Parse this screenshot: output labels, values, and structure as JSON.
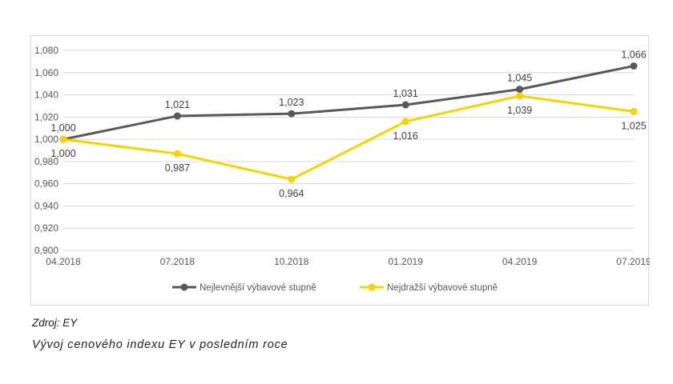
{
  "source_note": "Zdroj: EY",
  "caption": "Vývoj cenového indexu EY v posledním roce",
  "chart_data": {
    "type": "line",
    "title": "",
    "xlabel": "",
    "ylabel": "",
    "categories": [
      "04.2018",
      "07.2018",
      "10.2018",
      "01.2019",
      "04.2019",
      "07.2019"
    ],
    "ylim": [
      0.9,
      1.08
    ],
    "yticks": [
      0.9,
      0.92,
      0.94,
      0.96,
      0.98,
      1.0,
      1.02,
      1.04,
      1.06,
      1.08
    ],
    "ytick_labels": [
      "0,900",
      "0,920",
      "0,940",
      "0,960",
      "0,980",
      "1,000",
      "1,020",
      "1,040",
      "1,060",
      "1,080"
    ],
    "grid": "horizontal",
    "legend_position": "bottom",
    "series": [
      {
        "name": "Nejlevnější výbavové stupně",
        "color": "#595959",
        "values": [
          1.0,
          1.021,
          1.023,
          1.031,
          1.045,
          1.066
        ],
        "labels": [
          "1,000",
          "1,021",
          "1,023",
          "1,031",
          "1,045",
          "1,066"
        ],
        "label_position": "above"
      },
      {
        "name": "Nejdražší výbavové stupně",
        "color": "#f5d400",
        "values": [
          1.0,
          0.987,
          0.964,
          1.016,
          1.039,
          1.025
        ],
        "labels": [
          "1,000",
          "0,987",
          "0,964",
          "1,016",
          "1,039",
          "1,025"
        ],
        "label_position": "below"
      }
    ]
  }
}
